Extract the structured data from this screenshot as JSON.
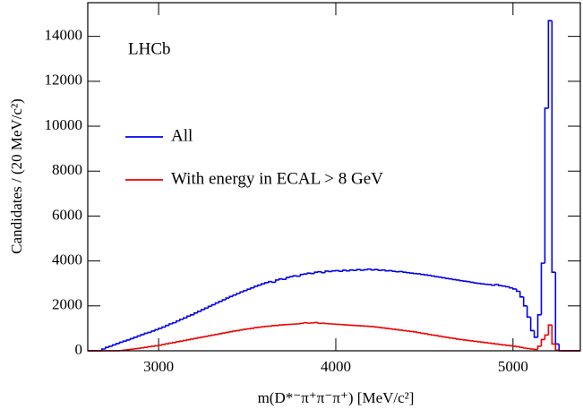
{
  "chart_data": {
    "type": "histogram",
    "annotation": "LHCb",
    "xlabel": "m(D*⁻π⁺π⁻π⁺) [MeV/c²]",
    "ylabel": "Candidates / (20 MeV/c²)",
    "xlim": [
      2600,
      5380
    ],
    "ylim": [
      0,
      15500
    ],
    "xticks": [
      3000,
      4000,
      5000
    ],
    "yticks": [
      0,
      2000,
      4000,
      6000,
      8000,
      10000,
      12000,
      14000
    ],
    "legend": "upper-left",
    "bins": [
      2600,
      2620,
      2640,
      2660,
      2680,
      2700,
      2720,
      2740,
      2760,
      2780,
      2800,
      2820,
      2840,
      2860,
      2880,
      2900,
      2920,
      2940,
      2960,
      2980,
      3000,
      3020,
      3040,
      3060,
      3080,
      3100,
      3120,
      3140,
      3160,
      3180,
      3200,
      3220,
      3240,
      3260,
      3280,
      3300,
      3320,
      3340,
      3360,
      3380,
      3400,
      3420,
      3440,
      3460,
      3480,
      3500,
      3520,
      3540,
      3560,
      3580,
      3600,
      3620,
      3640,
      3660,
      3680,
      3700,
      3720,
      3740,
      3760,
      3780,
      3800,
      3820,
      3840,
      3860,
      3880,
      3900,
      3920,
      3940,
      3960,
      3980,
      4000,
      4020,
      4040,
      4060,
      4080,
      4100,
      4120,
      4140,
      4160,
      4180,
      4200,
      4220,
      4240,
      4260,
      4280,
      4300,
      4320,
      4340,
      4360,
      4380,
      4400,
      4420,
      4440,
      4460,
      4480,
      4500,
      4520,
      4540,
      4560,
      4580,
      4600,
      4620,
      4640,
      4660,
      4680,
      4700,
      4720,
      4740,
      4760,
      4780,
      4800,
      4820,
      4840,
      4860,
      4880,
      4900,
      4920,
      4940,
      4960,
      4980,
      5000,
      5020,
      5040,
      5060,
      5080,
      5100,
      5120,
      5140,
      5160,
      5180,
      5200,
      5220,
      5240,
      5260,
      5280,
      5300,
      5320,
      5340,
      5360,
      5380
    ],
    "series": [
      {
        "name": "All",
        "color": "#0000ee",
        "values": [
          0,
          0,
          0,
          0,
          80,
          150,
          200,
          260,
          320,
          380,
          430,
          480,
          540,
          600,
          660,
          720,
          780,
          820,
          880,
          940,
          1000,
          1060,
          1130,
          1200,
          1250,
          1330,
          1400,
          1460,
          1540,
          1600,
          1680,
          1750,
          1830,
          1900,
          1980,
          2050,
          2130,
          2200,
          2270,
          2350,
          2420,
          2480,
          2550,
          2620,
          2680,
          2740,
          2800,
          2870,
          2920,
          2980,
          3030,
          3080,
          3050,
          3150,
          3200,
          3180,
          3260,
          3300,
          3340,
          3320,
          3400,
          3420,
          3460,
          3440,
          3500,
          3520,
          3480,
          3550,
          3530,
          3560,
          3570,
          3540,
          3590,
          3560,
          3600,
          3580,
          3620,
          3590,
          3610,
          3640,
          3600,
          3620,
          3580,
          3600,
          3560,
          3570,
          3540,
          3520,
          3530,
          3500,
          3480,
          3460,
          3440,
          3430,
          3400,
          3380,
          3360,
          3330,
          3300,
          3280,
          3250,
          3220,
          3200,
          3170,
          3150,
          3120,
          3100,
          3080,
          3050,
          3020,
          3000,
          2980,
          2960,
          2950,
          2920,
          2950,
          2900,
          2880,
          2850,
          2800,
          2750,
          2650,
          2400,
          2000,
          1500,
          900,
          600,
          1600,
          3900,
          10800,
          14700,
          3500,
          300,
          0,
          0,
          0,
          0,
          0,
          0
        ]
      },
      {
        "name": "With energy in ECAL > 8 GeV",
        "color": "#ee0000",
        "values": [
          0,
          0,
          0,
          0,
          0,
          0,
          0,
          0,
          0,
          10,
          30,
          50,
          70,
          90,
          110,
          130,
          150,
          180,
          200,
          220,
          250,
          280,
          310,
          340,
          370,
          400,
          430,
          460,
          490,
          520,
          550,
          580,
          610,
          640,
          670,
          700,
          730,
          760,
          790,
          820,
          850,
          880,
          900,
          930,
          960,
          980,
          1000,
          1030,
          1050,
          1070,
          1090,
          1100,
          1120,
          1130,
          1150,
          1160,
          1170,
          1180,
          1190,
          1200,
          1220,
          1250,
          1230,
          1240,
          1260,
          1220,
          1230,
          1210,
          1200,
          1190,
          1180,
          1170,
          1160,
          1150,
          1140,
          1130,
          1120,
          1110,
          1100,
          1090,
          1080,
          1060,
          1040,
          1020,
          1000,
          980,
          960,
          940,
          920,
          900,
          880,
          860,
          840,
          810,
          780,
          760,
          730,
          700,
          680,
          650,
          620,
          600,
          570,
          550,
          520,
          500,
          480,
          460,
          440,
          420,
          400,
          380,
          360,
          340,
          320,
          300,
          280,
          260,
          240,
          220,
          200,
          180,
          150,
          120,
          100,
          80,
          60,
          200,
          500,
          700,
          1150,
          300,
          30,
          0,
          0,
          0,
          0,
          0,
          0
        ]
      }
    ]
  }
}
